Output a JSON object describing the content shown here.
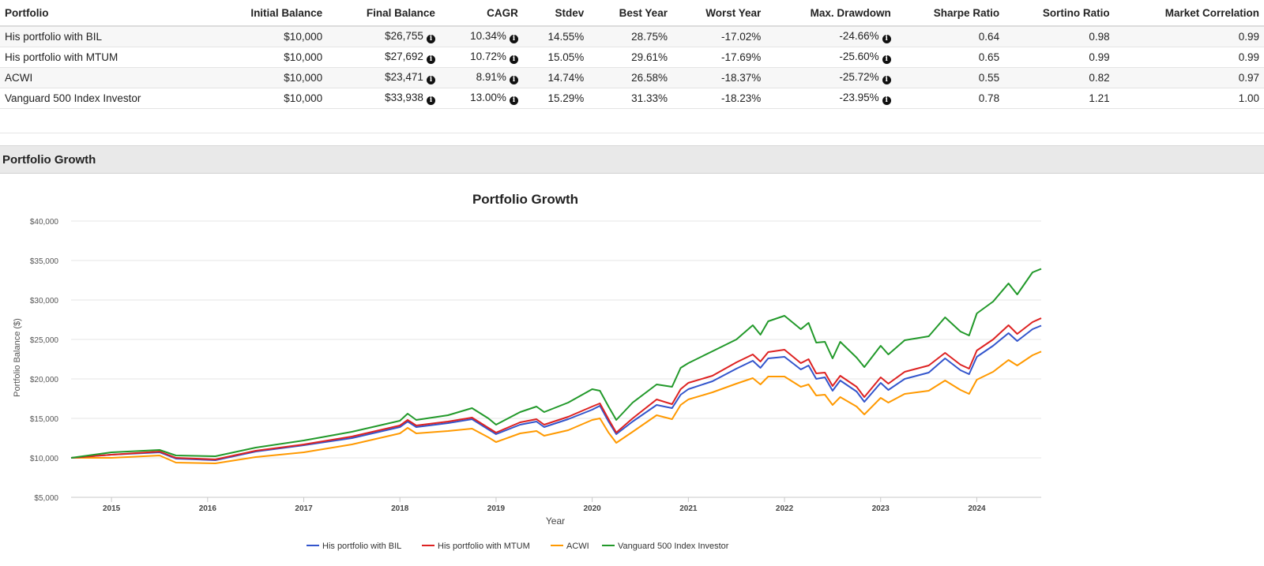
{
  "table": {
    "headers": [
      "Portfolio",
      "Initial Balance",
      "Final Balance",
      "CAGR",
      "Stdev",
      "Best Year",
      "Worst Year",
      "Max. Drawdown",
      "Sharpe Ratio",
      "Sortino Ratio",
      "Market Correlation"
    ],
    "rows": [
      {
        "portfolio": "His portfolio with BIL",
        "initial": "$10,000",
        "final": "$26,755",
        "cagr": "10.34%",
        "stdev": "14.55%",
        "best": "28.75%",
        "worst": "-17.02%",
        "maxdd": "-24.66%",
        "sharpe": "0.64",
        "sortino": "0.98",
        "corr": "0.99"
      },
      {
        "portfolio": "His portfolio with MTUM",
        "initial": "$10,000",
        "final": "$27,692",
        "cagr": "10.72%",
        "stdev": "15.05%",
        "best": "29.61%",
        "worst": "-17.69%",
        "maxdd": "-25.60%",
        "sharpe": "0.65",
        "sortino": "0.99",
        "corr": "0.99"
      },
      {
        "portfolio": "ACWI",
        "initial": "$10,000",
        "final": "$23,471",
        "cagr": "8.91%",
        "stdev": "14.74%",
        "best": "26.58%",
        "worst": "-18.37%",
        "maxdd": "-25.72%",
        "sharpe": "0.55",
        "sortino": "0.82",
        "corr": "0.97"
      },
      {
        "portfolio": "Vanguard 500 Index Investor",
        "initial": "$10,000",
        "final": "$33,938",
        "cagr": "13.00%",
        "stdev": "15.29%",
        "best": "31.33%",
        "worst": "-18.23%",
        "maxdd": "-23.95%",
        "sharpe": "0.78",
        "sortino": "1.21",
        "corr": "1.00"
      }
    ]
  },
  "section": {
    "title": "Portfolio Growth"
  },
  "chart_data": {
    "type": "line",
    "title": "Portfolio Growth",
    "xlabel": "Year",
    "ylabel": "Portfolio Balance ($)",
    "xlim": [
      2014.58,
      2024.67
    ],
    "ylim": [
      5000,
      40000
    ],
    "yticks": [
      5000,
      10000,
      15000,
      20000,
      25000,
      30000,
      35000,
      40000
    ],
    "ytick_labels": [
      "$5,000",
      "$10,000",
      "$15,000",
      "$20,000",
      "$25,000",
      "$30,000",
      "$35,000",
      "$40,000"
    ],
    "xticks": [
      2015,
      2016,
      2017,
      2018,
      2019,
      2020,
      2021,
      2022,
      2023,
      2024
    ],
    "xtick_labels": [
      "2015",
      "2016",
      "2017",
      "2018",
      "2019",
      "2020",
      "2021",
      "2022",
      "2023",
      "2024"
    ],
    "grid": "horizontal",
    "legend_position": "bottom",
    "series": [
      {
        "name": "His portfolio with BIL",
        "color": "#3355cc",
        "points": [
          [
            2014.58,
            10000
          ],
          [
            2015.0,
            10400
          ],
          [
            2015.5,
            10700
          ],
          [
            2015.67,
            9900
          ],
          [
            2016.08,
            9700
          ],
          [
            2016.5,
            10800
          ],
          [
            2017.0,
            11600
          ],
          [
            2017.5,
            12500
          ],
          [
            2018.0,
            13900
          ],
          [
            2018.08,
            14600
          ],
          [
            2018.17,
            13900
          ],
          [
            2018.5,
            14400
          ],
          [
            2018.75,
            14900
          ],
          [
            2018.92,
            13600
          ],
          [
            2019.0,
            13000
          ],
          [
            2019.25,
            14200
          ],
          [
            2019.42,
            14600
          ],
          [
            2019.5,
            13900
          ],
          [
            2019.75,
            14900
          ],
          [
            2020.0,
            16100
          ],
          [
            2020.08,
            16600
          ],
          [
            2020.17,
            14600
          ],
          [
            2020.25,
            13000
          ],
          [
            2020.42,
            14600
          ],
          [
            2020.67,
            16700
          ],
          [
            2020.83,
            16300
          ],
          [
            2020.92,
            18000
          ],
          [
            2021.0,
            18700
          ],
          [
            2021.25,
            19700
          ],
          [
            2021.5,
            21300
          ],
          [
            2021.67,
            22300
          ],
          [
            2021.75,
            21400
          ],
          [
            2021.83,
            22600
          ],
          [
            2022.0,
            22800
          ],
          [
            2022.17,
            21200
          ],
          [
            2022.25,
            21700
          ],
          [
            2022.33,
            20000
          ],
          [
            2022.42,
            20200
          ],
          [
            2022.5,
            18500
          ],
          [
            2022.58,
            19800
          ],
          [
            2022.75,
            18400
          ],
          [
            2022.83,
            17100
          ],
          [
            2023.0,
            19500
          ],
          [
            2023.08,
            18600
          ],
          [
            2023.25,
            20000
          ],
          [
            2023.5,
            20800
          ],
          [
            2023.67,
            22600
          ],
          [
            2023.83,
            21100
          ],
          [
            2023.92,
            20600
          ],
          [
            2024.0,
            22800
          ],
          [
            2024.17,
            24200
          ],
          [
            2024.33,
            25800
          ],
          [
            2024.42,
            24800
          ],
          [
            2024.58,
            26300
          ],
          [
            2024.67,
            26755
          ]
        ]
      },
      {
        "name": "His portfolio with MTUM",
        "color": "#dd2222",
        "points": [
          [
            2014.58,
            10000
          ],
          [
            2015.0,
            10400
          ],
          [
            2015.5,
            10800
          ],
          [
            2015.67,
            10000
          ],
          [
            2016.08,
            9800
          ],
          [
            2016.5,
            10900
          ],
          [
            2017.0,
            11700
          ],
          [
            2017.5,
            12700
          ],
          [
            2018.0,
            14100
          ],
          [
            2018.08,
            14800
          ],
          [
            2018.17,
            14100
          ],
          [
            2018.5,
            14600
          ],
          [
            2018.75,
            15100
          ],
          [
            2018.92,
            13800
          ],
          [
            2019.0,
            13200
          ],
          [
            2019.25,
            14500
          ],
          [
            2019.42,
            14900
          ],
          [
            2019.5,
            14200
          ],
          [
            2019.75,
            15200
          ],
          [
            2020.0,
            16500
          ],
          [
            2020.08,
            16900
          ],
          [
            2020.17,
            14900
          ],
          [
            2020.25,
            13200
          ],
          [
            2020.42,
            15000
          ],
          [
            2020.67,
            17400
          ],
          [
            2020.83,
            16800
          ],
          [
            2020.92,
            18700
          ],
          [
            2021.0,
            19500
          ],
          [
            2021.25,
            20400
          ],
          [
            2021.5,
            22100
          ],
          [
            2021.67,
            23100
          ],
          [
            2021.75,
            22200
          ],
          [
            2021.83,
            23400
          ],
          [
            2022.0,
            23700
          ],
          [
            2022.17,
            22000
          ],
          [
            2022.25,
            22500
          ],
          [
            2022.33,
            20700
          ],
          [
            2022.42,
            20800
          ],
          [
            2022.5,
            19100
          ],
          [
            2022.58,
            20400
          ],
          [
            2022.75,
            19000
          ],
          [
            2022.83,
            17700
          ],
          [
            2023.0,
            20200
          ],
          [
            2023.08,
            19400
          ],
          [
            2023.25,
            20900
          ],
          [
            2023.5,
            21700
          ],
          [
            2023.67,
            23300
          ],
          [
            2023.83,
            21800
          ],
          [
            2023.92,
            21300
          ],
          [
            2024.0,
            23600
          ],
          [
            2024.17,
            25000
          ],
          [
            2024.33,
            26800
          ],
          [
            2024.42,
            25700
          ],
          [
            2024.58,
            27200
          ],
          [
            2024.67,
            27692
          ]
        ]
      },
      {
        "name": "ACWI",
        "color": "#ff9900",
        "points": [
          [
            2014.58,
            10000
          ],
          [
            2015.0,
            10000
          ],
          [
            2015.5,
            10300
          ],
          [
            2015.67,
            9400
          ],
          [
            2016.08,
            9300
          ],
          [
            2016.5,
            10100
          ],
          [
            2017.0,
            10700
          ],
          [
            2017.5,
            11700
          ],
          [
            2018.0,
            13100
          ],
          [
            2018.08,
            13800
          ],
          [
            2018.17,
            13100
          ],
          [
            2018.5,
            13400
          ],
          [
            2018.75,
            13700
          ],
          [
            2018.92,
            12600
          ],
          [
            2019.0,
            12000
          ],
          [
            2019.25,
            13100
          ],
          [
            2019.42,
            13400
          ],
          [
            2019.5,
            12800
          ],
          [
            2019.75,
            13500
          ],
          [
            2020.0,
            14800
          ],
          [
            2020.08,
            15000
          ],
          [
            2020.17,
            13200
          ],
          [
            2020.25,
            11900
          ],
          [
            2020.42,
            13300
          ],
          [
            2020.67,
            15400
          ],
          [
            2020.83,
            14900
          ],
          [
            2020.92,
            16700
          ],
          [
            2021.0,
            17400
          ],
          [
            2021.25,
            18300
          ],
          [
            2021.5,
            19400
          ],
          [
            2021.67,
            20100
          ],
          [
            2021.75,
            19300
          ],
          [
            2021.83,
            20300
          ],
          [
            2022.0,
            20300
          ],
          [
            2022.17,
            19000
          ],
          [
            2022.25,
            19300
          ],
          [
            2022.33,
            17900
          ],
          [
            2022.42,
            18000
          ],
          [
            2022.5,
            16700
          ],
          [
            2022.58,
            17700
          ],
          [
            2022.75,
            16500
          ],
          [
            2022.83,
            15500
          ],
          [
            2023.0,
            17600
          ],
          [
            2023.08,
            17000
          ],
          [
            2023.25,
            18100
          ],
          [
            2023.5,
            18500
          ],
          [
            2023.67,
            19800
          ],
          [
            2023.83,
            18600
          ],
          [
            2023.92,
            18100
          ],
          [
            2024.0,
            19900
          ],
          [
            2024.17,
            20900
          ],
          [
            2024.33,
            22400
          ],
          [
            2024.42,
            21700
          ],
          [
            2024.58,
            23000
          ],
          [
            2024.67,
            23471
          ]
        ]
      },
      {
        "name": "Vanguard 500 Index Investor",
        "color": "#22992a",
        "points": [
          [
            2014.58,
            10000
          ],
          [
            2015.0,
            10700
          ],
          [
            2015.5,
            11000
          ],
          [
            2015.67,
            10300
          ],
          [
            2016.08,
            10200
          ],
          [
            2016.5,
            11300
          ],
          [
            2017.0,
            12200
          ],
          [
            2017.5,
            13300
          ],
          [
            2018.0,
            14700
          ],
          [
            2018.08,
            15600
          ],
          [
            2018.17,
            14800
          ],
          [
            2018.5,
            15400
          ],
          [
            2018.75,
            16300
          ],
          [
            2018.92,
            15000
          ],
          [
            2019.0,
            14200
          ],
          [
            2019.25,
            15800
          ],
          [
            2019.42,
            16500
          ],
          [
            2019.5,
            15800
          ],
          [
            2019.75,
            17000
          ],
          [
            2020.0,
            18700
          ],
          [
            2020.08,
            18500
          ],
          [
            2020.17,
            16500
          ],
          [
            2020.25,
            14800
          ],
          [
            2020.42,
            17000
          ],
          [
            2020.67,
            19300
          ],
          [
            2020.83,
            19000
          ],
          [
            2020.92,
            21400
          ],
          [
            2021.0,
            22000
          ],
          [
            2021.25,
            23500
          ],
          [
            2021.5,
            25000
          ],
          [
            2021.67,
            26800
          ],
          [
            2021.75,
            25600
          ],
          [
            2021.83,
            27300
          ],
          [
            2022.0,
            28000
          ],
          [
            2022.17,
            26300
          ],
          [
            2022.25,
            27100
          ],
          [
            2022.33,
            24600
          ],
          [
            2022.42,
            24700
          ],
          [
            2022.5,
            22600
          ],
          [
            2022.58,
            24700
          ],
          [
            2022.75,
            22700
          ],
          [
            2022.83,
            21500
          ],
          [
            2023.0,
            24200
          ],
          [
            2023.08,
            23100
          ],
          [
            2023.25,
            24900
          ],
          [
            2023.5,
            25400
          ],
          [
            2023.67,
            27800
          ],
          [
            2023.83,
            26000
          ],
          [
            2023.92,
            25500
          ],
          [
            2024.0,
            28300
          ],
          [
            2024.17,
            29800
          ],
          [
            2024.33,
            32100
          ],
          [
            2024.42,
            30700
          ],
          [
            2024.58,
            33500
          ],
          [
            2024.67,
            33938
          ]
        ]
      }
    ]
  }
}
